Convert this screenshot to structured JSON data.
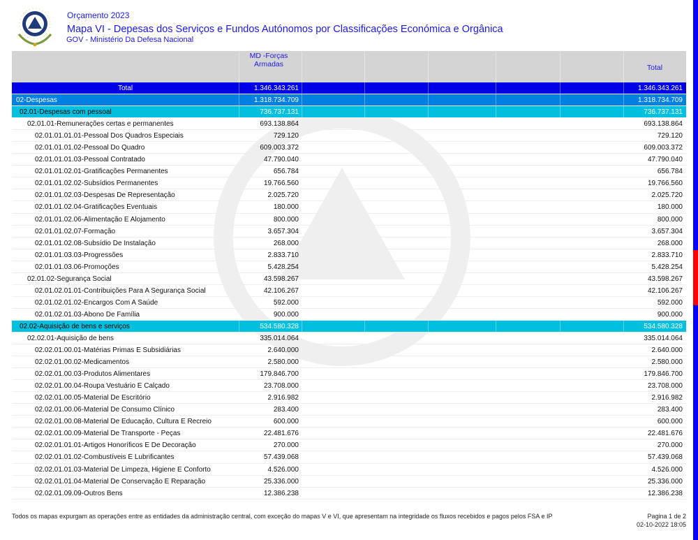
{
  "header": {
    "year": "Orçamento 2023",
    "title": "Mapa VI - Depesas dos Serviços e Fundos Autónomos por Classificações Económica e Orgânica",
    "subtitle": "GOV - Ministério Da Defesa Nacional"
  },
  "table": {
    "columns": [
      "MD -Forças Armadas",
      "Total"
    ],
    "rows": [
      {
        "level": 0,
        "label": "Total",
        "value": "1.346.343.261",
        "total": "1.346.343.261"
      },
      {
        "level": 1,
        "label": "02-Despesas",
        "value": "1.318.734.709",
        "total": "1.318.734.709"
      },
      {
        "level": 2,
        "label": "02.01-Despesas com pessoal",
        "value": "736.737.131",
        "total": "736.737.131"
      },
      {
        "level": 3,
        "label": "02.01.01-Remunerações certas e permanentes",
        "value": "693.138.864",
        "total": "693.138.864"
      },
      {
        "level": 4,
        "label": "02.01.01.01.01-Pessoal Dos Quadros Especiais",
        "value": "729.120",
        "total": "729.120"
      },
      {
        "level": 4,
        "label": "02.01.01.01.02-Pessoal Do Quadro",
        "value": "609.003.372",
        "total": "609.003.372"
      },
      {
        "level": 4,
        "label": "02.01.01.01.03-Pessoal Contratado",
        "value": "47.790.040",
        "total": "47.790.040"
      },
      {
        "level": 4,
        "label": "02.01.01.02.01-Gratificações Permanentes",
        "value": "656.784",
        "total": "656.784"
      },
      {
        "level": 4,
        "label": "02.01.01.02.02-Subsídios Permanentes",
        "value": "19.766.560",
        "total": "19.766.560"
      },
      {
        "level": 4,
        "label": "02.01.01.02.03-Despesas De Representação",
        "value": "2.025.720",
        "total": "2.025.720"
      },
      {
        "level": 4,
        "label": "02.01.01.02.04-Gratificações Eventuais",
        "value": "180.000",
        "total": "180.000"
      },
      {
        "level": 4,
        "label": "02.01.01.02.06-Alimentação E Alojamento",
        "value": "800.000",
        "total": "800.000"
      },
      {
        "level": 4,
        "label": "02.01.01.02.07-Formação",
        "value": "3.657.304",
        "total": "3.657.304"
      },
      {
        "level": 4,
        "label": "02.01.01.02.08-Subsídio De Instalação",
        "value": "268.000",
        "total": "268.000"
      },
      {
        "level": 4,
        "label": "02.01.01.03.03-Progressões",
        "value": "2.833.710",
        "total": "2.833.710"
      },
      {
        "level": 4,
        "label": "02.01.01.03.06-Promoções",
        "value": "5.428.254",
        "total": "5.428.254"
      },
      {
        "level": 3,
        "label": "02.01.02-Segurança Social",
        "value": "43.598.267",
        "total": "43.598.267"
      },
      {
        "level": 4,
        "label": "02.01.02.01.01-Contribuições Para A Segurança Social",
        "value": "42.106.267",
        "total": "42.106.267"
      },
      {
        "level": 4,
        "label": "02.01.02.01.02-Encargos Com A Saúde",
        "value": "592.000",
        "total": "592.000"
      },
      {
        "level": 4,
        "label": "02.01.02.01.03-Abono De Família",
        "value": "900.000",
        "total": "900.000"
      },
      {
        "level": 2,
        "label": "02.02-Aquisição de bens e serviços",
        "value": "534.580.328",
        "total": "534.580.328"
      },
      {
        "level": 3,
        "label": "02.02.01-Aquisição de bens",
        "value": "335.014.064",
        "total": "335.014.064"
      },
      {
        "level": 4,
        "label": "02.02.01.00.01-Matérias Primas E Subsidiárias",
        "value": "2.640.000",
        "total": "2.640.000"
      },
      {
        "level": 4,
        "label": "02.02.01.00.02-Medicamentos",
        "value": "2.580.000",
        "total": "2.580.000"
      },
      {
        "level": 4,
        "label": "02.02.01.00.03-Produtos Alimentares",
        "value": "179.846.700",
        "total": "179.846.700"
      },
      {
        "level": 4,
        "label": "02.02.01.00.04-Roupa  Vestuário E Calçado",
        "value": "23.708.000",
        "total": "23.708.000"
      },
      {
        "level": 4,
        "label": "02.02.01.00.05-Material De Escritório",
        "value": "2.916.982",
        "total": "2.916.982"
      },
      {
        "level": 4,
        "label": "02.02.01.00.06-Material De Consumo Clínico",
        "value": "283.400",
        "total": "283.400"
      },
      {
        "level": 4,
        "label": "02.02.01.00.08-Material De Educação, Cultura E Recreio",
        "value": "600.000",
        "total": "600.000"
      },
      {
        "level": 4,
        "label": "02.02.01.00.09-Material De Transporte - Peças",
        "value": "22.481.676",
        "total": "22.481.676"
      },
      {
        "level": 4,
        "label": "02.02.01.01.01-Artigos Honoríficos E De Decoração",
        "value": "270.000",
        "total": "270.000"
      },
      {
        "level": 4,
        "label": "02.02.01.01.02-Combustíveis E Lubrificantes",
        "value": "57.439.068",
        "total": "57.439.068"
      },
      {
        "level": 4,
        "label": "02.02.01.01.03-Material De Limpeza, Higiene E Conforto",
        "value": "4.526.000",
        "total": "4.526.000"
      },
      {
        "level": 4,
        "label": "02.02.01.01.04-Material De Conservação E Reparação",
        "value": "25.336.000",
        "total": "25.336.000"
      },
      {
        "level": 4,
        "label": "02.02.01.09.09-Outros Bens",
        "value": "12.386.238",
        "total": "12.386.238"
      }
    ]
  },
  "footer": {
    "note": "Todos os mapas expurgam as operações entre as entidades da administração central, com exceção do mapas V e VI, que apresentam na integridade os fluxos recebidos e pagos pelos FSA e IP",
    "page": "Pagina 1 de 2",
    "datetime": "02-10-2022 18:05"
  },
  "colors": {
    "total": "#0000e6",
    "level1": "#0080e0",
    "level2": "#00bfdf",
    "header_bg": "#d4d4d4",
    "title": "#1a1ae6"
  },
  "icons": {
    "logo": "cabo-verde-coat-of-arms"
  }
}
